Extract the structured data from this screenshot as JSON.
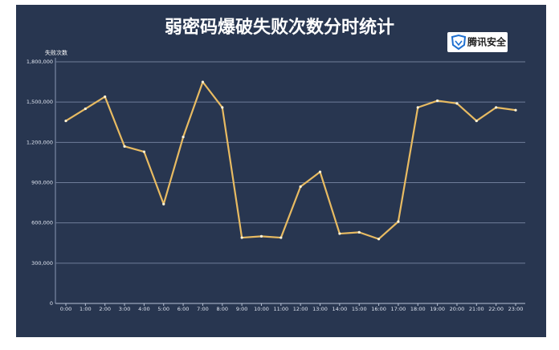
{
  "chart_data": {
    "type": "line",
    "title": "弱密码爆破失败次数分时统计",
    "logo": "腾讯安全",
    "y_label": "失败次数",
    "categories": [
      "0:00",
      "1:00",
      "2:00",
      "3:00",
      "4:00",
      "5:00",
      "6:00",
      "7:00",
      "8:00",
      "9:00",
      "10:00",
      "11:00",
      "12:00",
      "13:00",
      "14:00",
      "15:00",
      "16:00",
      "17:00",
      "18:00",
      "19:00",
      "20:00",
      "21:00",
      "22:00",
      "23:00"
    ],
    "series": [
      {
        "name": "失败次数",
        "color": "#e8bb62",
        "values": [
          1360000,
          1450000,
          1540000,
          1170000,
          1130000,
          740000,
          1240000,
          1650000,
          1460000,
          490000,
          500000,
          490000,
          870000,
          980000,
          520000,
          530000,
          480000,
          610000,
          1460000,
          1510000,
          1490000,
          1360000,
          1460000,
          1440000
        ]
      }
    ],
    "ylim": [
      0,
      1800000
    ],
    "yticks": [
      0,
      {
        "value": 300000,
        "label": "300,000"
      },
      {
        "value": 600000,
        "label": "600,000"
      },
      {
        "value": 900000,
        "label": "900,000"
      },
      {
        "value": 1200000,
        "label": "1,200,000"
      },
      {
        "value": 1500000,
        "label": "1,500,000"
      },
      {
        "value": 1800000,
        "label": "1,800,000"
      }
    ],
    "grid": true
  }
}
